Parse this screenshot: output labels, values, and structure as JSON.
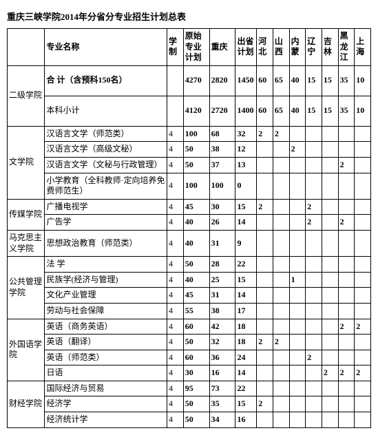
{
  "title": "重庆三峡学院2014年分省分专业招生计划总表",
  "headers": {
    "college": "",
    "major": "专业名称",
    "years": "学制",
    "orig": "原始专业计划",
    "cq": "重庆",
    "out": "出省计划",
    "hebei": "河北",
    "shanxi": "山西",
    "neimeng": "内蒙",
    "liaoning": "辽宁",
    "jilin": "吉林",
    "hlj": "黑龙江",
    "shanghai": "上海"
  },
  "groups": [
    {
      "college": "二级学院",
      "rows": [
        {
          "major": "合 计（含预科150名）",
          "y": "",
          "o": "4270",
          "cq": "2820",
          "out": "1450",
          "heb": "60",
          "sx": "65",
          "nm": "40",
          "ln": "15",
          "jl": "15",
          "hlj": "35",
          "sh": "10",
          "bold": true,
          "tall": true
        },
        {
          "major": "本科小计",
          "y": "",
          "o": "4120",
          "cq": "2720",
          "out": "1400",
          "heb": "60",
          "sx": "65",
          "nm": "40",
          "ln": "15",
          "jl": "15",
          "hlj": "35",
          "sh": "10",
          "tall": true
        }
      ]
    },
    {
      "college": "文学院",
      "rows": [
        {
          "major": "汉语言文学（师范类）",
          "y": "4",
          "o": "100",
          "cq": "68",
          "out": "32",
          "heb": "2",
          "sx": "2",
          "nm": "",
          "ln": "",
          "jl": "",
          "hlj": "",
          "sh": ""
        },
        {
          "major": "汉语言文学（高级文秘）",
          "y": "4",
          "o": "50",
          "cq": "38",
          "out": "12",
          "heb": "",
          "sx": "",
          "nm": "2",
          "ln": "",
          "jl": "",
          "hlj": "",
          "sh": ""
        },
        {
          "major": "汉语言文学（文秘与行政管理）",
          "y": "4",
          "o": "50",
          "cq": "37",
          "out": "13",
          "heb": "",
          "sx": "",
          "nm": "",
          "ln": "",
          "jl": "",
          "hlj": "2",
          "sh": ""
        },
        {
          "major": "小学教育（全科教师·定向培养免费师范生）",
          "y": "4",
          "o": "100",
          "cq": "100",
          "out": "0",
          "heb": "",
          "sx": "",
          "nm": "",
          "ln": "",
          "jl": "",
          "hlj": "",
          "sh": ""
        }
      ]
    },
    {
      "college": "传媒学院",
      "rows": [
        {
          "major": "广播电视学",
          "y": "4",
          "o": "45",
          "cq": "30",
          "out": "15",
          "heb": "2",
          "sx": "",
          "nm": "",
          "ln": "2",
          "jl": "",
          "hlj": "",
          "sh": ""
        },
        {
          "major": "广告学",
          "y": "4",
          "o": "40",
          "cq": "26",
          "out": "14",
          "heb": "",
          "sx": "",
          "nm": "",
          "ln": "2",
          "jl": "",
          "hlj": "2",
          "sh": ""
        }
      ]
    },
    {
      "college": "马克思主义学院",
      "rows": [
        {
          "major": "思想政治教育（师范类）",
          "y": "4",
          "o": "40",
          "cq": "31",
          "out": "9",
          "heb": "",
          "sx": "",
          "nm": "",
          "ln": "",
          "jl": "",
          "hlj": "",
          "sh": ""
        }
      ]
    },
    {
      "college": "公共管理学院",
      "rows": [
        {
          "major": "法 学",
          "y": "4",
          "o": "50",
          "cq": "28",
          "out": "22",
          "heb": "",
          "sx": "",
          "nm": "",
          "ln": "",
          "jl": "",
          "hlj": "",
          "sh": ""
        },
        {
          "major": "民族学(经济与管理)",
          "y": "4",
          "o": "40",
          "cq": "25",
          "out": "15",
          "heb": "",
          "sx": "",
          "nm": "1",
          "ln": "",
          "jl": "",
          "hlj": "",
          "sh": ""
        },
        {
          "major": "文化产业管理",
          "y": "4",
          "o": "45",
          "cq": "31",
          "out": "14",
          "heb": "",
          "sx": "",
          "nm": "",
          "ln": "",
          "jl": "",
          "hlj": "",
          "sh": ""
        },
        {
          "major": "劳动与社会保障",
          "y": "4",
          "o": "55",
          "cq": "38",
          "out": "17",
          "heb": "",
          "sx": "",
          "nm": "",
          "ln": "",
          "jl": "",
          "hlj": "",
          "sh": ""
        }
      ]
    },
    {
      "college": "外国语学院",
      "rows": [
        {
          "major": "英语（商务英语）",
          "y": "4",
          "o": "60",
          "cq": "42",
          "out": "18",
          "heb": "",
          "sx": "",
          "nm": "",
          "ln": "",
          "jl": "",
          "hlj": "2",
          "sh": "2"
        },
        {
          "major": "英语（翻译）",
          "y": "4",
          "o": "50",
          "cq": "32",
          "out": "18",
          "heb": "2",
          "sx": "2",
          "nm": "",
          "ln": "",
          "jl": "",
          "hlj": "",
          "sh": ""
        },
        {
          "major": "英语（师范类）",
          "y": "4",
          "o": "60",
          "cq": "36",
          "out": "24",
          "heb": "",
          "sx": "",
          "nm": "",
          "ln": "2",
          "jl": "",
          "hlj": "",
          "sh": ""
        },
        {
          "major": "日语",
          "y": "4",
          "o": "30",
          "cq": "16",
          "out": "14",
          "heb": "",
          "sx": "",
          "nm": "",
          "ln": "",
          "jl": "2",
          "hlj": "2",
          "sh": "2"
        }
      ]
    },
    {
      "college": "财经学院",
      "rows": [
        {
          "major": "国际经济与贸易",
          "y": "4",
          "o": "95",
          "cq": "73",
          "out": "22",
          "heb": "",
          "sx": "",
          "nm": "",
          "ln": "",
          "jl": "",
          "hlj": "",
          "sh": ""
        },
        {
          "major": "经济学",
          "y": "4",
          "o": "50",
          "cq": "35",
          "out": "15",
          "heb": "2",
          "sx": "",
          "nm": "",
          "ln": "",
          "jl": "",
          "hlj": "",
          "sh": ""
        },
        {
          "major": "经济统计学",
          "y": "4",
          "o": "50",
          "cq": "34",
          "out": "16",
          "heb": "",
          "sx": "",
          "nm": "",
          "ln": "",
          "jl": "",
          "hlj": "",
          "sh": ""
        }
      ]
    }
  ]
}
